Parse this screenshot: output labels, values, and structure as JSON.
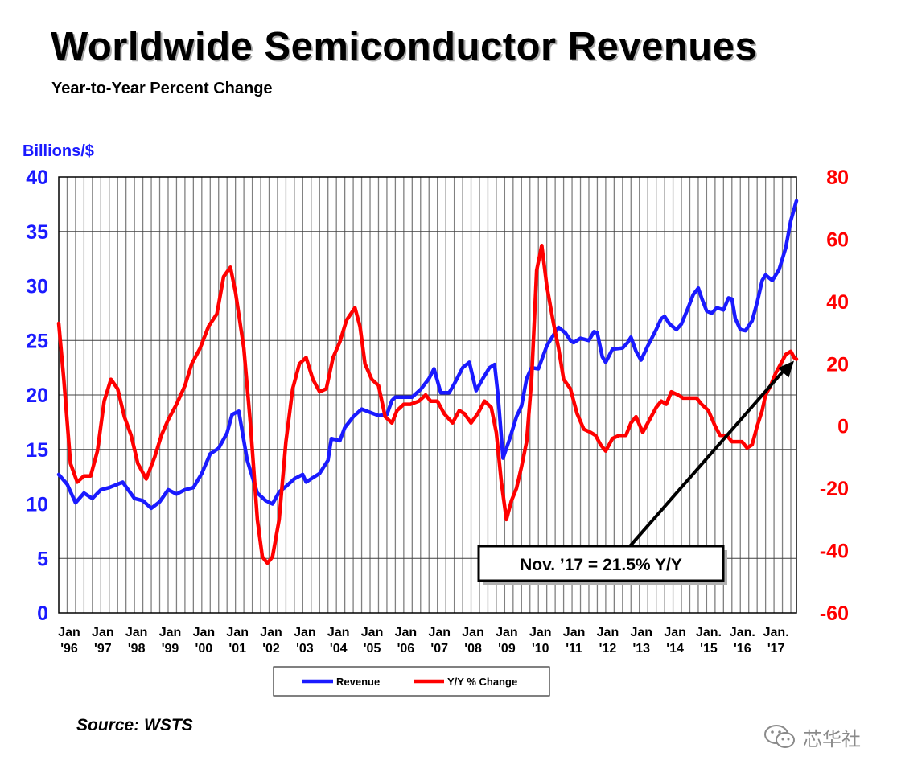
{
  "title": "Worldwide Semiconductor Revenues",
  "subtitle": "Year-to-Year Percent Change",
  "source": "Source: WSTS",
  "watermark": "芯华社",
  "chart_data": {
    "type": "line",
    "left_axis": {
      "label": "Billions/$",
      "range": [
        0,
        40
      ],
      "ticks": [
        "0",
        "5",
        "10",
        "15",
        "20",
        "25",
        "30",
        "35",
        "40"
      ],
      "color": "#1a1aff"
    },
    "right_axis": {
      "label": "",
      "range": [
        -60,
        80
      ],
      "ticks": [
        "-60",
        "-40",
        "-20",
        "0",
        "20",
        "40",
        "60",
        "80"
      ],
      "color": "#ff0000"
    },
    "x_range": [
      1996.0,
      2017.917
    ],
    "x_ticks": [
      {
        "x": 1996,
        "l1": "Jan",
        "l2": "'96"
      },
      {
        "x": 1997,
        "l1": "Jan",
        "l2": "'97"
      },
      {
        "x": 1998,
        "l1": "Jan",
        "l2": "'98"
      },
      {
        "x": 1999,
        "l1": "Jan",
        "l2": "'99"
      },
      {
        "x": 2000,
        "l1": "Jan",
        "l2": "'00"
      },
      {
        "x": 2001,
        "l1": "Jan",
        "l2": "'01"
      },
      {
        "x": 2002,
        "l1": "Jan",
        "l2": "'02"
      },
      {
        "x": 2003,
        "l1": "Jan",
        "l2": "'03"
      },
      {
        "x": 2004,
        "l1": "Jan",
        "l2": "'04"
      },
      {
        "x": 2005,
        "l1": "Jan",
        "l2": "'05"
      },
      {
        "x": 2006,
        "l1": "Jan",
        "l2": "'06"
      },
      {
        "x": 2007,
        "l1": "Jan",
        "l2": "'07"
      },
      {
        "x": 2008,
        "l1": "Jan",
        "l2": "'08"
      },
      {
        "x": 2009,
        "l1": "Jan",
        "l2": "'09"
      },
      {
        "x": 2010,
        "l1": "Jan",
        "l2": "'10"
      },
      {
        "x": 2011,
        "l1": "Jan",
        "l2": "'11"
      },
      {
        "x": 2012,
        "l1": "Jan",
        "l2": "'12"
      },
      {
        "x": 2013,
        "l1": "Jan",
        "l2": "'13"
      },
      {
        "x": 2014,
        "l1": "Jan",
        "l2": "'14"
      },
      {
        "x": 2015,
        "l1": "Jan.",
        "l2": "'15"
      },
      {
        "x": 2016,
        "l1": "Jan.",
        "l2": "'16"
      },
      {
        "x": 2017,
        "l1": "Jan.",
        "l2": "'17"
      }
    ],
    "grid": "vertical lines every 3 months plus horizontal gridlines at each left-axis tick",
    "series": [
      {
        "name": "Revenue",
        "axis": "left",
        "color": "#1a1aff",
        "points": [
          [
            1996.0,
            12.7
          ],
          [
            1996.25,
            11.8
          ],
          [
            1996.5,
            10.1
          ],
          [
            1996.75,
            11.0
          ],
          [
            1997.0,
            10.5
          ],
          [
            1997.25,
            11.3
          ],
          [
            1997.5,
            11.5
          ],
          [
            1997.9,
            12.0
          ],
          [
            1998.25,
            10.5
          ],
          [
            1998.5,
            10.3
          ],
          [
            1998.75,
            9.6
          ],
          [
            1999.0,
            10.2
          ],
          [
            1999.25,
            11.3
          ],
          [
            1999.5,
            10.9
          ],
          [
            1999.75,
            11.3
          ],
          [
            2000.0,
            11.5
          ],
          [
            2000.25,
            12.8
          ],
          [
            2000.5,
            14.6
          ],
          [
            2000.75,
            15.1
          ],
          [
            2001.0,
            16.5
          ],
          [
            2001.15,
            18.2
          ],
          [
            2001.35,
            18.5
          ],
          [
            2001.6,
            14.0
          ],
          [
            2001.9,
            11.0
          ],
          [
            2002.15,
            10.3
          ],
          [
            2002.35,
            10.0
          ],
          [
            2002.55,
            11.1
          ],
          [
            2002.75,
            11.6
          ],
          [
            2003.0,
            12.3
          ],
          [
            2003.25,
            12.7
          ],
          [
            2003.35,
            12.0
          ],
          [
            2003.5,
            12.3
          ],
          [
            2003.75,
            12.8
          ],
          [
            2004.0,
            14.0
          ],
          [
            2004.1,
            16.0
          ],
          [
            2004.35,
            15.8
          ],
          [
            2004.5,
            17.0
          ],
          [
            2004.75,
            18.0
          ],
          [
            2005.0,
            18.7
          ],
          [
            2005.25,
            18.4
          ],
          [
            2005.5,
            18.1
          ],
          [
            2005.75,
            18.2
          ],
          [
            2005.9,
            19.5
          ],
          [
            2006.0,
            19.8
          ],
          [
            2006.25,
            19.8
          ],
          [
            2006.5,
            19.8
          ],
          [
            2006.75,
            20.5
          ],
          [
            2007.0,
            21.5
          ],
          [
            2007.15,
            22.4
          ],
          [
            2007.35,
            20.2
          ],
          [
            2007.6,
            20.2
          ],
          [
            2007.75,
            21.0
          ],
          [
            2008.0,
            22.5
          ],
          [
            2008.2,
            23.0
          ],
          [
            2008.4,
            20.4
          ],
          [
            2008.6,
            21.5
          ],
          [
            2008.8,
            22.5
          ],
          [
            2008.95,
            22.8
          ],
          [
            2009.05,
            20.0
          ],
          [
            2009.2,
            14.2
          ],
          [
            2009.4,
            16.0
          ],
          [
            2009.6,
            18.0
          ],
          [
            2009.75,
            19.0
          ],
          [
            2009.9,
            21.5
          ],
          [
            2010.05,
            22.5
          ],
          [
            2010.25,
            22.4
          ],
          [
            2010.5,
            24.5
          ],
          [
            2010.7,
            25.5
          ],
          [
            2010.85,
            26.2
          ],
          [
            2011.05,
            25.7
          ],
          [
            2011.2,
            25.0
          ],
          [
            2011.3,
            24.8
          ],
          [
            2011.5,
            25.2
          ],
          [
            2011.75,
            25.0
          ],
          [
            2011.9,
            25.8
          ],
          [
            2012.0,
            25.7
          ],
          [
            2012.15,
            23.5
          ],
          [
            2012.25,
            23.0
          ],
          [
            2012.45,
            24.2
          ],
          [
            2012.75,
            24.3
          ],
          [
            2012.9,
            24.8
          ],
          [
            2013.0,
            25.3
          ],
          [
            2013.15,
            24.0
          ],
          [
            2013.3,
            23.2
          ],
          [
            2013.5,
            24.5
          ],
          [
            2013.75,
            26.0
          ],
          [
            2013.9,
            27.0
          ],
          [
            2014.0,
            27.2
          ],
          [
            2014.15,
            26.5
          ],
          [
            2014.35,
            26.0
          ],
          [
            2014.5,
            26.5
          ],
          [
            2014.7,
            28.0
          ],
          [
            2014.85,
            29.2
          ],
          [
            2015.0,
            29.8
          ],
          [
            2015.1,
            28.9
          ],
          [
            2015.25,
            27.7
          ],
          [
            2015.4,
            27.5
          ],
          [
            2015.55,
            28.0
          ],
          [
            2015.75,
            27.8
          ],
          [
            2015.9,
            28.9
          ],
          [
            2016.0,
            28.8
          ],
          [
            2016.1,
            27.0
          ],
          [
            2016.25,
            26.0
          ],
          [
            2016.4,
            25.9
          ],
          [
            2016.6,
            26.8
          ],
          [
            2016.75,
            28.5
          ],
          [
            2016.9,
            30.5
          ],
          [
            2017.0,
            31.0
          ],
          [
            2017.2,
            30.5
          ],
          [
            2017.4,
            31.5
          ],
          [
            2017.6,
            33.5
          ],
          [
            2017.75,
            36.0
          ],
          [
            2017.917,
            37.8
          ]
        ]
      },
      {
        "name": "Y/Y % Change",
        "axis": "right",
        "color": "#ff0000",
        "points": [
          [
            1996.0,
            33
          ],
          [
            1996.15,
            15
          ],
          [
            1996.35,
            -12
          ],
          [
            1996.55,
            -18
          ],
          [
            1996.75,
            -16
          ],
          [
            1996.95,
            -16
          ],
          [
            1997.15,
            -8
          ],
          [
            1997.35,
            8
          ],
          [
            1997.55,
            15
          ],
          [
            1997.75,
            12
          ],
          [
            1997.95,
            3
          ],
          [
            1998.15,
            -3
          ],
          [
            1998.35,
            -12
          ],
          [
            1998.6,
            -17
          ],
          [
            1998.85,
            -10
          ],
          [
            1999.05,
            -3
          ],
          [
            1999.25,
            2
          ],
          [
            1999.5,
            7
          ],
          [
            1999.75,
            13
          ],
          [
            1999.95,
            20
          ],
          [
            2000.2,
            25
          ],
          [
            2000.45,
            32
          ],
          [
            2000.7,
            36
          ],
          [
            2000.9,
            48
          ],
          [
            2001.1,
            51
          ],
          [
            2001.25,
            43
          ],
          [
            2001.5,
            25
          ],
          [
            2001.7,
            0
          ],
          [
            2001.9,
            -30
          ],
          [
            2002.05,
            -42
          ],
          [
            2002.2,
            -44
          ],
          [
            2002.35,
            -42
          ],
          [
            2002.55,
            -30
          ],
          [
            2002.75,
            -5
          ],
          [
            2002.95,
            12
          ],
          [
            2003.15,
            20
          ],
          [
            2003.35,
            22
          ],
          [
            2003.55,
            15
          ],
          [
            2003.75,
            11
          ],
          [
            2003.95,
            12
          ],
          [
            2004.15,
            22
          ],
          [
            2004.35,
            27
          ],
          [
            2004.55,
            34
          ],
          [
            2004.8,
            38
          ],
          [
            2004.95,
            32
          ],
          [
            2005.1,
            20
          ],
          [
            2005.3,
            15
          ],
          [
            2005.5,
            13
          ],
          [
            2005.7,
            3
          ],
          [
            2005.9,
            1
          ],
          [
            2006.05,
            5
          ],
          [
            2006.25,
            7
          ],
          [
            2006.45,
            7
          ],
          [
            2006.7,
            8
          ],
          [
            2006.9,
            10
          ],
          [
            2007.05,
            8
          ],
          [
            2007.25,
            8
          ],
          [
            2007.45,
            4
          ],
          [
            2007.7,
            1
          ],
          [
            2007.9,
            5
          ],
          [
            2008.05,
            4
          ],
          [
            2008.25,
            1
          ],
          [
            2008.45,
            4
          ],
          [
            2008.65,
            8
          ],
          [
            2008.85,
            6
          ],
          [
            2009.0,
            -2
          ],
          [
            2009.15,
            -18
          ],
          [
            2009.3,
            -30
          ],
          [
            2009.45,
            -24
          ],
          [
            2009.6,
            -20
          ],
          [
            2009.75,
            -13
          ],
          [
            2009.9,
            -5
          ],
          [
            2010.05,
            15
          ],
          [
            2010.2,
            50
          ],
          [
            2010.35,
            58
          ],
          [
            2010.5,
            45
          ],
          [
            2010.7,
            33
          ],
          [
            2010.85,
            25
          ],
          [
            2011.0,
            15
          ],
          [
            2011.2,
            12
          ],
          [
            2011.4,
            4
          ],
          [
            2011.6,
            -1
          ],
          [
            2011.8,
            -2
          ],
          [
            2011.95,
            -3
          ],
          [
            2012.1,
            -6
          ],
          [
            2012.25,
            -8
          ],
          [
            2012.45,
            -4
          ],
          [
            2012.65,
            -3
          ],
          [
            2012.85,
            -3
          ],
          [
            2013.0,
            1
          ],
          [
            2013.15,
            3
          ],
          [
            2013.35,
            -2
          ],
          [
            2013.55,
            2
          ],
          [
            2013.75,
            6
          ],
          [
            2013.9,
            8
          ],
          [
            2014.05,
            7
          ],
          [
            2014.2,
            11
          ],
          [
            2014.4,
            10
          ],
          [
            2014.55,
            9
          ],
          [
            2014.75,
            9
          ],
          [
            2014.95,
            9
          ],
          [
            2015.1,
            7
          ],
          [
            2015.3,
            5
          ],
          [
            2015.5,
            0
          ],
          [
            2015.65,
            -3
          ],
          [
            2015.85,
            -3
          ],
          [
            2016.0,
            -5
          ],
          [
            2016.15,
            -5
          ],
          [
            2016.3,
            -5
          ],
          [
            2016.45,
            -7
          ],
          [
            2016.6,
            -6
          ],
          [
            2016.75,
            0
          ],
          [
            2016.9,
            5
          ],
          [
            2017.0,
            10
          ],
          [
            2017.15,
            13
          ],
          [
            2017.3,
            17
          ],
          [
            2017.45,
            20
          ],
          [
            2017.6,
            23
          ],
          [
            2017.75,
            24
          ],
          [
            2017.85,
            22
          ],
          [
            2017.917,
            21.5
          ]
        ]
      }
    ],
    "legend": {
      "placement": "bottom-center",
      "entries": [
        "Revenue",
        "Y/Y % Change"
      ]
    },
    "annotation": {
      "text": "Nov. ’17 = 21.5% Y/Y",
      "x": 2017.917,
      "y": 21.5,
      "axis": "right"
    }
  }
}
